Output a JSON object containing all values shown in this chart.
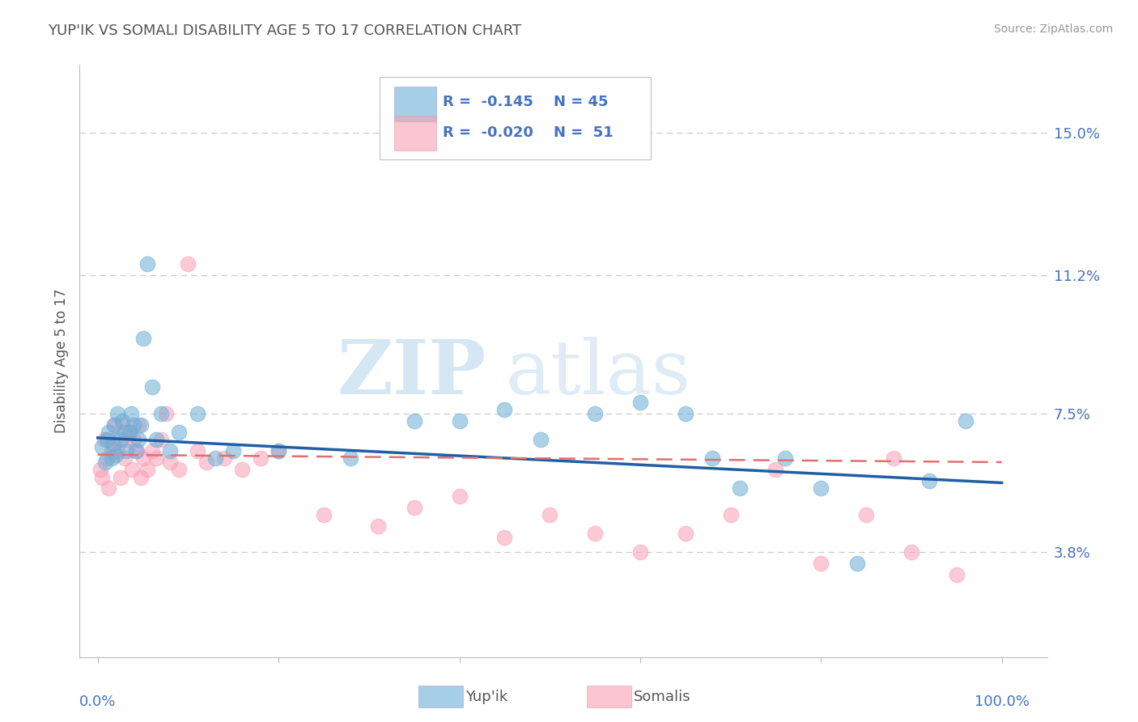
{
  "title": "YUP'IK VS SOMALI DISABILITY AGE 5 TO 17 CORRELATION CHART",
  "source": "Source: ZipAtlas.com",
  "ylabel": "Disability Age 5 to 17",
  "ytick_vals": [
    0.038,
    0.075,
    0.112,
    0.15
  ],
  "ytick_labels": [
    "3.8%",
    "7.5%",
    "11.2%",
    "15.0%"
  ],
  "xlim": [
    -0.02,
    1.05
  ],
  "ylim": [
    0.01,
    0.168
  ],
  "legend_blue_r": "R =  -0.145",
  "legend_blue_n": "N = 45",
  "legend_pink_r": "R =  -0.020",
  "legend_pink_n": "N =  51",
  "legend_label_blue": "Yup'ik",
  "legend_label_pink": "Somalis",
  "blue_color": "#6baed6",
  "pink_color": "#fa9fb5",
  "blue_line_color": "#1f5fa6",
  "pink_line_color": "#e07070",
  "watermark_zip": "ZIP",
  "watermark_atlas": "atlas",
  "background_color": "#ffffff",
  "grid_color": "#cccccc",
  "title_color": "#555555",
  "legend_r_color": "#4472c4",
  "blue_x": [
    0.005,
    0.008,
    0.01,
    0.012,
    0.015,
    0.017,
    0.018,
    0.02,
    0.022,
    0.025,
    0.027,
    0.03,
    0.032,
    0.035,
    0.037,
    0.04,
    0.042,
    0.045,
    0.048,
    0.05,
    0.055,
    0.06,
    0.065,
    0.07,
    0.08,
    0.09,
    0.11,
    0.13,
    0.15,
    0.2,
    0.28,
    0.35,
    0.4,
    0.45,
    0.49,
    0.55,
    0.6,
    0.65,
    0.68,
    0.71,
    0.76,
    0.8,
    0.84,
    0.92,
    0.96
  ],
  "blue_y": [
    0.066,
    0.062,
    0.068,
    0.07,
    0.063,
    0.067,
    0.072,
    0.064,
    0.075,
    0.068,
    0.073,
    0.07,
    0.065,
    0.07,
    0.075,
    0.072,
    0.065,
    0.068,
    0.072,
    0.095,
    0.115,
    0.082,
    0.068,
    0.075,
    0.065,
    0.07,
    0.075,
    0.063,
    0.065,
    0.065,
    0.063,
    0.073,
    0.073,
    0.076,
    0.068,
    0.075,
    0.078,
    0.075,
    0.063,
    0.055,
    0.063,
    0.055,
    0.035,
    0.057,
    0.073
  ],
  "pink_x": [
    0.003,
    0.005,
    0.007,
    0.01,
    0.012,
    0.015,
    0.017,
    0.018,
    0.02,
    0.022,
    0.025,
    0.028,
    0.03,
    0.032,
    0.035,
    0.038,
    0.04,
    0.043,
    0.045,
    0.048,
    0.05,
    0.055,
    0.06,
    0.065,
    0.07,
    0.075,
    0.08,
    0.09,
    0.1,
    0.11,
    0.12,
    0.14,
    0.16,
    0.18,
    0.2,
    0.25,
    0.31,
    0.35,
    0.4,
    0.45,
    0.5,
    0.55,
    0.6,
    0.65,
    0.7,
    0.75,
    0.8,
    0.85,
    0.88,
    0.9,
    0.95
  ],
  "pink_y": [
    0.06,
    0.058,
    0.068,
    0.063,
    0.055,
    0.065,
    0.065,
    0.072,
    0.068,
    0.065,
    0.058,
    0.072,
    0.063,
    0.068,
    0.07,
    0.06,
    0.068,
    0.065,
    0.072,
    0.058,
    0.063,
    0.06,
    0.065,
    0.063,
    0.068,
    0.075,
    0.062,
    0.06,
    0.115,
    0.065,
    0.062,
    0.063,
    0.06,
    0.063,
    0.065,
    0.048,
    0.045,
    0.05,
    0.053,
    0.042,
    0.048,
    0.043,
    0.038,
    0.043,
    0.048,
    0.06,
    0.035,
    0.048,
    0.063,
    0.038,
    0.032
  ],
  "blue_intercept": 0.0685,
  "blue_slope": -0.012,
  "pink_intercept": 0.064,
  "pink_slope": -0.002
}
